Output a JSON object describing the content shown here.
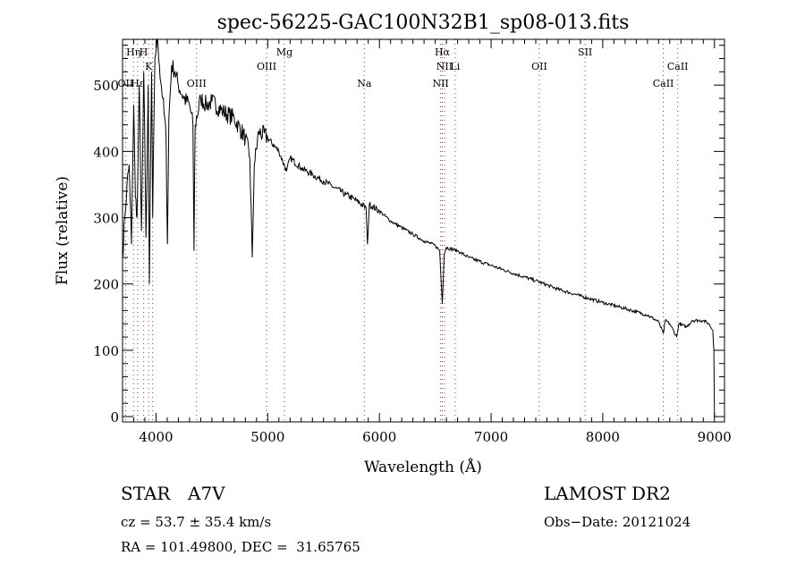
{
  "chart_data": {
    "type": "line",
    "title": "spec-56225-GAC100N32B1_sp08-013.fits",
    "xlabel": "Wavelength (Å)",
    "ylabel": "Flux (relative)",
    "xlim": [
      3700,
      9090
    ],
    "ylim": [
      -8,
      569
    ],
    "grid": false,
    "x_ticks": [
      "4000",
      "5000",
      "6000",
      "7000",
      "8000",
      "9000"
    ],
    "x_tick_values": [
      4000,
      5000,
      6000,
      7000,
      8000,
      9000
    ],
    "y_ticks": [
      "0",
      "100",
      "200",
      "300",
      "400",
      "500"
    ],
    "y_tick_values": [
      0,
      100,
      200,
      300,
      400,
      500
    ],
    "series": [
      {
        "name": "spectrum",
        "x": [
          3700,
          3720,
          3740,
          3760,
          3780,
          3800,
          3815,
          3830,
          3850,
          3870,
          3890,
          3910,
          3930,
          3940,
          3960,
          3970,
          3990,
          4010,
          4030,
          4060,
          4090,
          4102,
          4115,
          4140,
          4170,
          4200,
          4250,
          4300,
          4330,
          4340,
          4350,
          4400,
          4450,
          4500,
          4600,
          4700,
          4800,
          4840,
          4861,
          4880,
          4920,
          5000,
          5100,
          5170,
          5200,
          5300,
          5400,
          5500,
          5600,
          5700,
          5800,
          5880,
          5893,
          5910,
          6000,
          6100,
          6200,
          6300,
          6400,
          6500,
          6540,
          6563,
          6580,
          6600,
          6700,
          6800,
          7000,
          7200,
          7400,
          7600,
          7800,
          8000,
          8200,
          8400,
          8500,
          8542,
          8560,
          8600,
          8662,
          8680,
          8750,
          8800,
          8900,
          8950,
          8985,
          8995,
          9000
        ],
        "y": [
          240,
          300,
          350,
          380,
          260,
          470,
          330,
          300,
          500,
          280,
          520,
          270,
          500,
          200,
          520,
          300,
          540,
          570,
          530,
          480,
          420,
          260,
          450,
          530,
          520,
          500,
          480,
          470,
          440,
          250,
          440,
          480,
          470,
          475,
          460,
          450,
          420,
          390,
          240,
          380,
          430,
          420,
          400,
          370,
          390,
          375,
          365,
          355,
          345,
          335,
          325,
          315,
          260,
          320,
          310,
          295,
          285,
          275,
          265,
          258,
          250,
          170,
          245,
          255,
          250,
          240,
          228,
          216,
          205,
          192,
          182,
          172,
          163,
          153,
          143,
          125,
          145,
          140,
          120,
          140,
          135,
          145,
          145,
          140,
          130,
          100,
          0
        ]
      }
    ],
    "lines": [
      {
        "wave": 3727,
        "label": "OII",
        "row": 3
      },
      {
        "wave": 3798,
        "label": "Hη",
        "row": 1
      },
      {
        "wave": 3835,
        "label": "Hε",
        "row": 3
      },
      {
        "wave": 3889,
        "label": "H",
        "row": 1
      },
      {
        "wave": 3934,
        "label": "K",
        "row": 2
      },
      {
        "wave": 3970,
        "label": "",
        "row": 0
      },
      {
        "wave": 4363,
        "label": "OIII",
        "row": 3
      },
      {
        "wave": 4990,
        "label": "OIII",
        "row": 2
      },
      {
        "wave": 5150,
        "label": "Mg",
        "row": 1
      },
      {
        "wave": 5865,
        "label": "Na",
        "row": 3
      },
      {
        "wave": 6548,
        "label": "NII",
        "row": 3
      },
      {
        "wave": 6563,
        "label": "Hα",
        "row": 1
      },
      {
        "wave": 6583,
        "label": "NII",
        "row": 2
      },
      {
        "wave": 6678,
        "label": "Li",
        "row": 2
      },
      {
        "wave": 7432,
        "label": "OII",
        "row": 2
      },
      {
        "wave": 7842,
        "label": "SII",
        "row": 1
      },
      {
        "wave": 8542,
        "label": "CaII",
        "row": 3
      },
      {
        "wave": 8671,
        "label": "CaII",
        "row": 2
      }
    ]
  },
  "info": {
    "object_class": "STAR",
    "subclass": "A7V",
    "survey": "LAMOST DR2",
    "redshift": "cz = 53.7 ± 35.4 km/s",
    "obs_date": "Obs−Date: 20121024",
    "coords": "RA = 101.49800, DEC =  31.65765"
  }
}
